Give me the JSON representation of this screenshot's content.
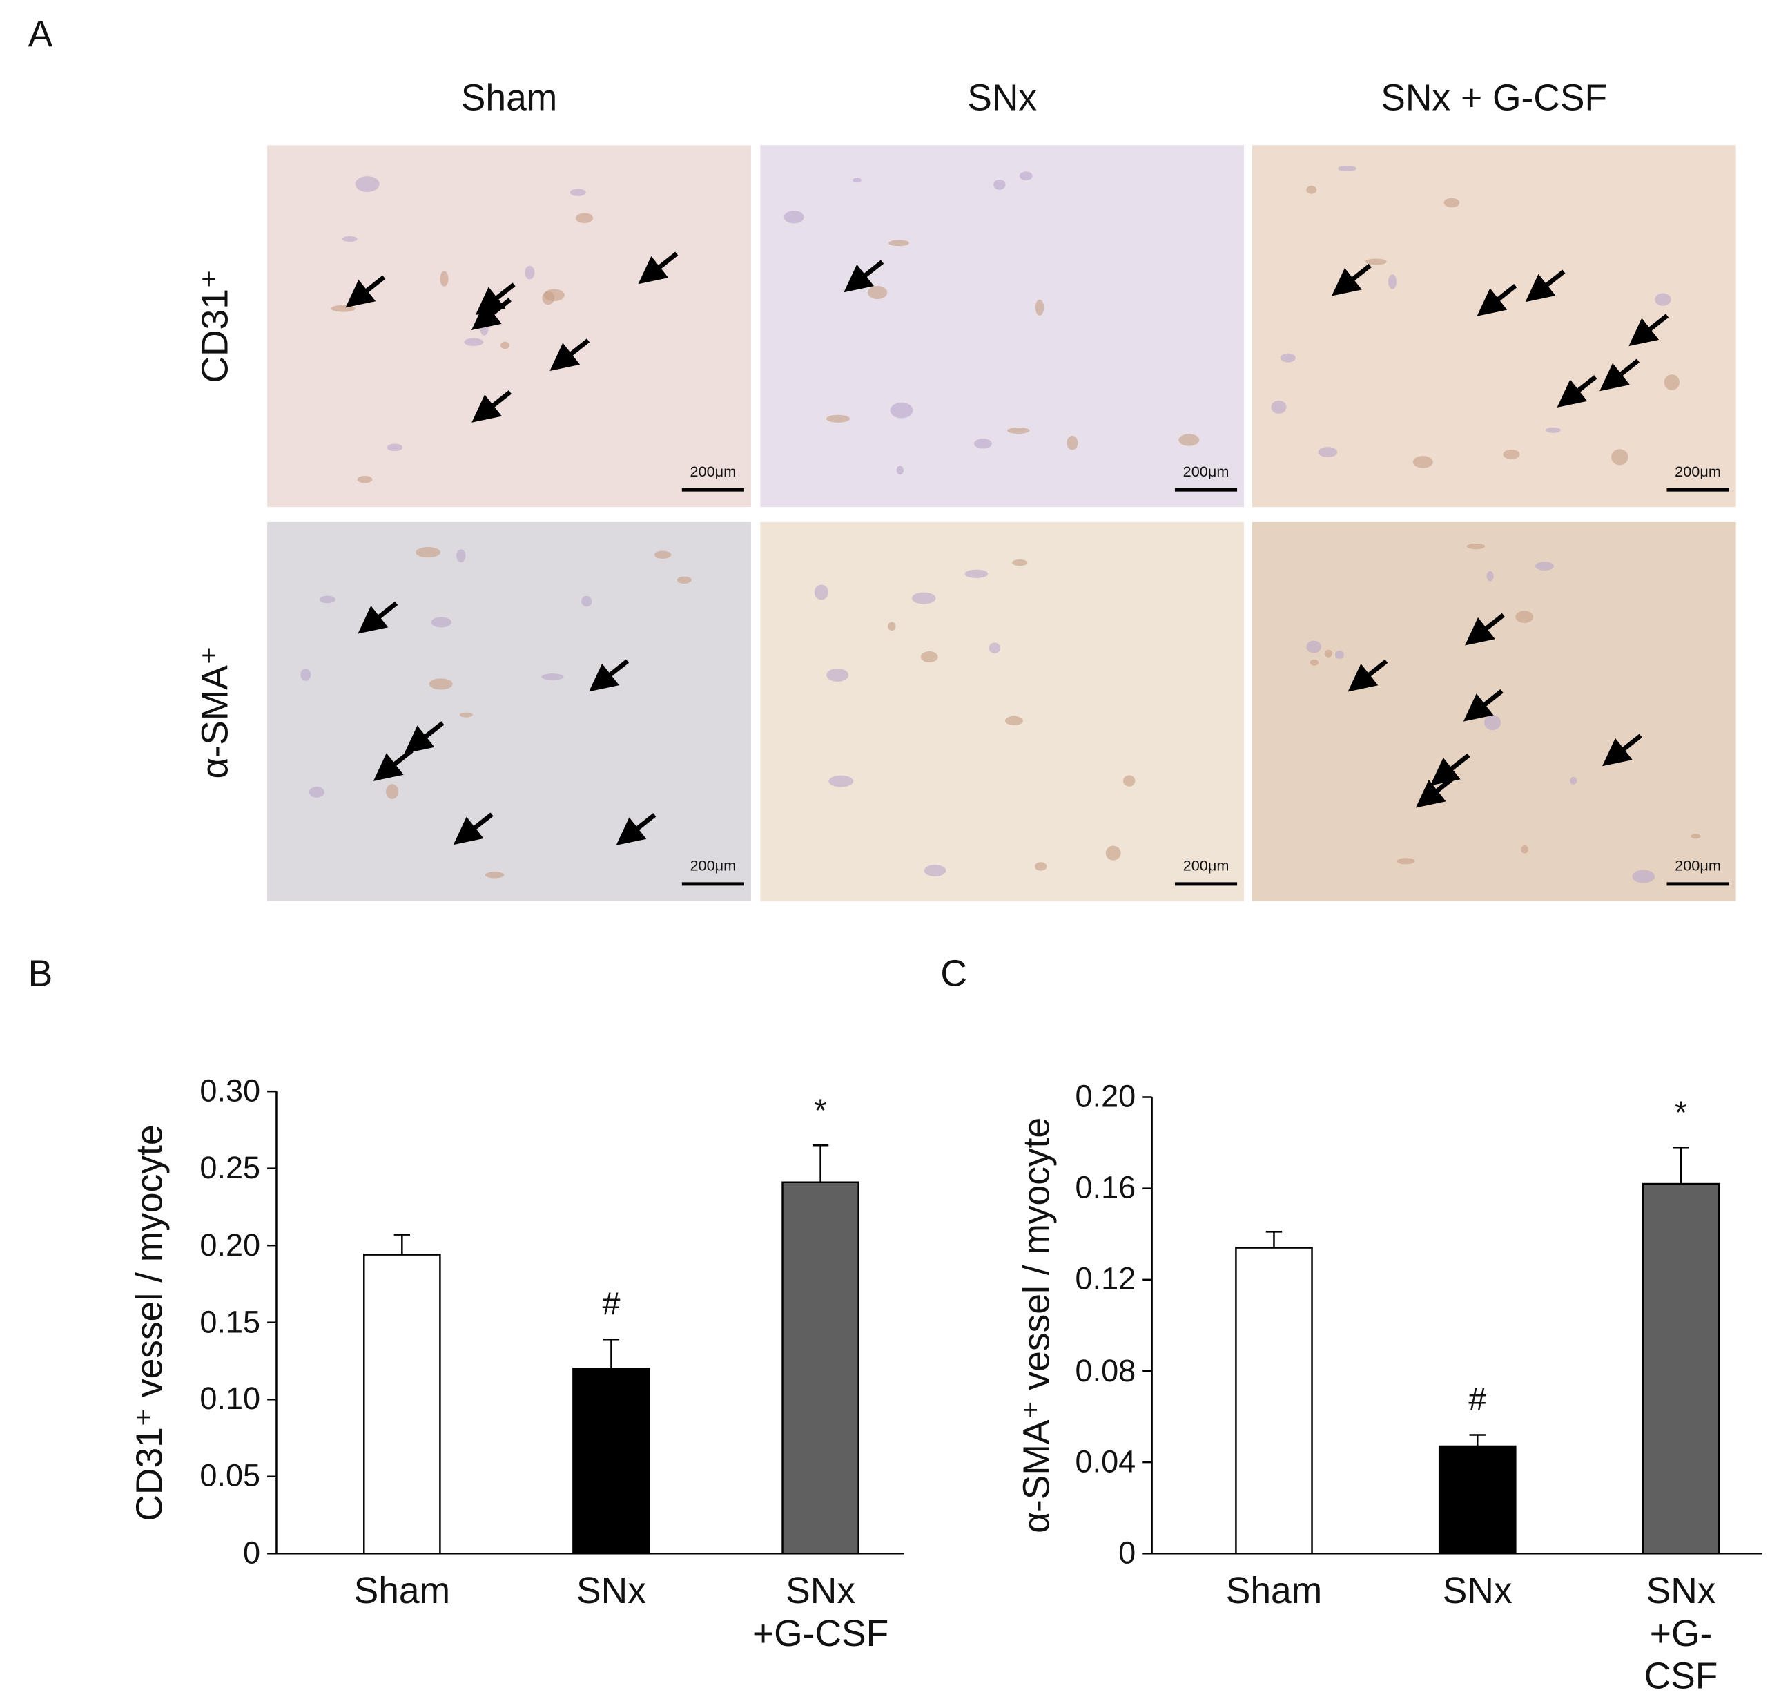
{
  "panel_labels": [
    "A",
    "B",
    "C"
  ],
  "micrographs": {
    "columns": [
      "Sham",
      "SNx",
      "SNx + G-CSF"
    ],
    "rows": [
      "CD31⁺",
      "α-SMA⁺"
    ],
    "scale_bar": "200μm"
  },
  "chart_data": [
    {
      "type": "bar",
      "y_label": "CD31⁺ vessel / myocyte",
      "categories": [
        "Sham",
        "SNx",
        "SNx\n+G-CSF"
      ],
      "values": [
        0.194,
        0.12,
        0.241
      ],
      "errors": [
        0.013,
        0.019,
        0.024
      ],
      "bar_labels": [
        null,
        "#",
        "*"
      ],
      "colors": [
        "#ffffff",
        "#000000",
        "#606060"
      ],
      "ylim": [
        0,
        0.3
      ],
      "yticks": [
        0,
        0.05,
        {
          "value": 0.1,
          "label": "0.10"
        },
        0.15,
        {
          "value": 0.2,
          "label": "0.20"
        },
        0.25,
        {
          "value": 0.3,
          "label": "0.30"
        }
      ]
    },
    {
      "type": "bar",
      "y_label": "α-SMA⁺ vessel / myocyte",
      "categories": [
        "Sham",
        "SNx",
        "SNx\n+G-CSF"
      ],
      "values": [
        0.134,
        0.047,
        0.162
      ],
      "errors": [
        0.007,
        0.005,
        0.016
      ],
      "bar_labels": [
        null,
        "#",
        "*"
      ],
      "colors": [
        "#ffffff",
        "#000000",
        "#606060"
      ],
      "ylim": [
        0,
        0.2
      ],
      "yticks": [
        0,
        0.04,
        0.08,
        0.12,
        0.16,
        {
          "value": 0.2,
          "label": "0.20"
        }
      ]
    }
  ]
}
